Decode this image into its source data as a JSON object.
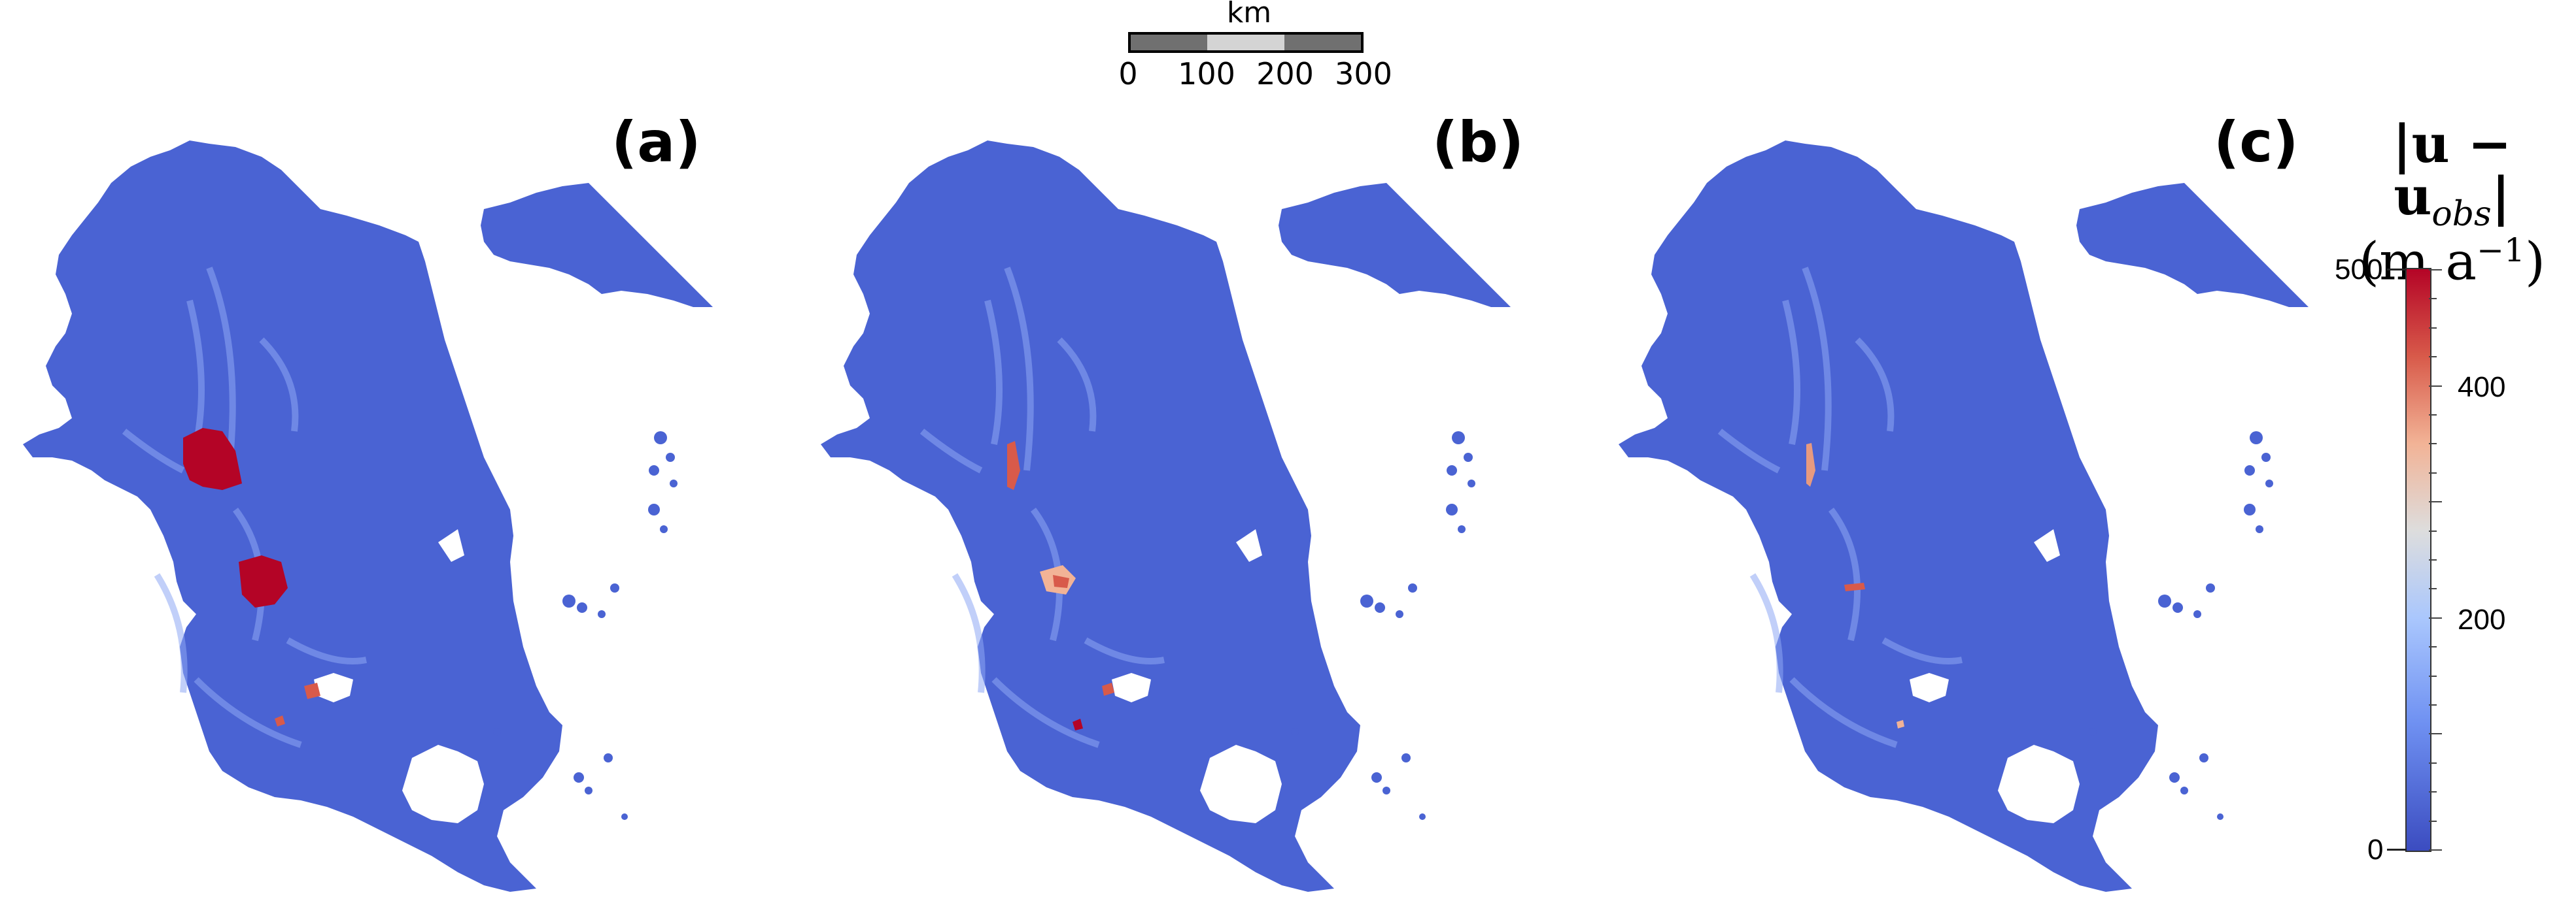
{
  "scalebar": {
    "unit": "km",
    "ticks": [
      "0",
      "100",
      "200",
      "300"
    ]
  },
  "panels": [
    {
      "label": "(a)"
    },
    {
      "label": "(b)"
    },
    {
      "label": "(c)"
    }
  ],
  "colorbar": {
    "title_line1": "|u − u",
    "title_sub": "obs",
    "title_end": "|",
    "title_line2": "(m a",
    "title_sup": "−1",
    "title_close": ")",
    "ticks": [
      "500",
      "400",
      "200",
      "0"
    ],
    "min": 0,
    "max": 500,
    "colors": {
      "low": "#3b4cc0",
      "mid": "#dddddd",
      "high": "#b40426"
    }
  }
}
